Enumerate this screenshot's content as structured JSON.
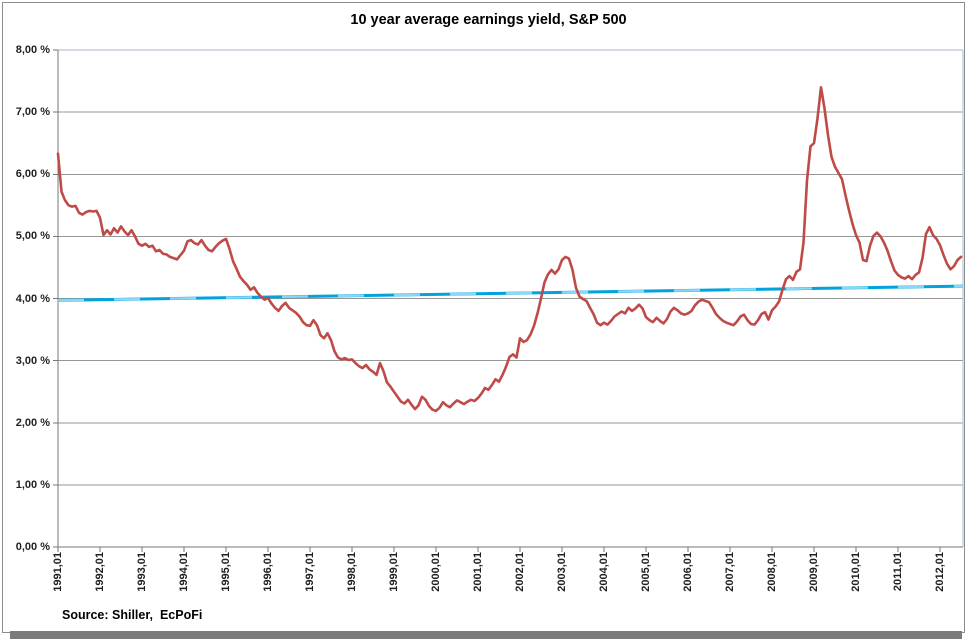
{
  "window": {
    "background": "#FFFFFF",
    "frame_border_color": "#8C8C8C",
    "shadow_color": "#7B7B7B"
  },
  "chart_data": {
    "type": "line",
    "title": "10 year average earnings yield, S&P 500",
    "source_note": "Source: Shiller,  EcPoFi",
    "grid": "horizontal",
    "legend": "none",
    "ylim": [
      0,
      8
    ],
    "colors": {
      "gridline": "#979797",
      "axis": "#777777",
      "plot_top_border": "#aab4c8",
      "plot_right_border": "#a5bedb",
      "series_main": "#BE4B48",
      "series_trend": "#00A3DC",
      "series_trend_dash": "#8BD7F6"
    },
    "y_axis": {
      "ticks": [
        {
          "label": "8,00 %",
          "value": 8
        },
        {
          "label": "7,00 %",
          "value": 7
        },
        {
          "label": "6,00 %",
          "value": 6
        },
        {
          "label": "5,00 %",
          "value": 5
        },
        {
          "label": "4,00 %",
          "value": 4
        },
        {
          "label": "3,00 %",
          "value": 3
        },
        {
          "label": "2,00 %",
          "value": 2
        },
        {
          "label": "1,00 %",
          "value": 1
        },
        {
          "label": "0,00 %",
          "value": 0
        }
      ]
    },
    "x_axis": {
      "start_year": 1991,
      "tick_labels": [
        "1991,01",
        "1992,01",
        "1993,01",
        "1994,01",
        "1995,01",
        "1996,01",
        "1997,01",
        "1998,01",
        "1999,01",
        "2000,01",
        "2001,01",
        "2002,01",
        "2003,01",
        "2004,01",
        "2005,01",
        "2006,01",
        "2007,01",
        "2008,01",
        "2009,01",
        "2010,01",
        "2011,01",
        "2012,01"
      ]
    },
    "series": [
      {
        "name": "10-year-average-earnings-yield",
        "render": "monthly",
        "color": "#BE4B48",
        "stroke_width": 2.6,
        "start_year": 1991,
        "values_percent": [
          6.33,
          5.72,
          5.58,
          5.5,
          5.48,
          5.49,
          5.38,
          5.35,
          5.39,
          5.41,
          5.4,
          5.41,
          5.3,
          5.02,
          5.1,
          5.03,
          5.13,
          5.06,
          5.16,
          5.08,
          5.02,
          5.1,
          5.0,
          4.88,
          4.85,
          4.88,
          4.83,
          4.85,
          4.76,
          4.78,
          4.72,
          4.71,
          4.67,
          4.65,
          4.63,
          4.7,
          4.77,
          4.92,
          4.94,
          4.89,
          4.87,
          4.94,
          4.85,
          4.78,
          4.76,
          4.83,
          4.89,
          4.93,
          4.96,
          4.8,
          4.6,
          4.48,
          4.35,
          4.28,
          4.22,
          4.14,
          4.18,
          4.09,
          4.03,
          3.98,
          4.01,
          3.92,
          3.85,
          3.8,
          3.88,
          3.93,
          3.85,
          3.81,
          3.77,
          3.71,
          3.62,
          3.57,
          3.56,
          3.65,
          3.57,
          3.41,
          3.36,
          3.44,
          3.33,
          3.15,
          3.05,
          3.02,
          3.04,
          3.01,
          3.02,
          2.96,
          2.91,
          2.88,
          2.93,
          2.86,
          2.82,
          2.77,
          2.96,
          2.83,
          2.65,
          2.58,
          2.5,
          2.42,
          2.34,
          2.31,
          2.37,
          2.29,
          2.22,
          2.28,
          2.42,
          2.37,
          2.27,
          2.21,
          2.19,
          2.24,
          2.33,
          2.28,
          2.25,
          2.31,
          2.36,
          2.33,
          2.3,
          2.34,
          2.37,
          2.35,
          2.4,
          2.47,
          2.56,
          2.53,
          2.61,
          2.7,
          2.66,
          2.77,
          2.9,
          3.06,
          3.1,
          3.05,
          3.36,
          3.3,
          3.33,
          3.42,
          3.56,
          3.76,
          4.0,
          4.26,
          4.39,
          4.46,
          4.4,
          4.47,
          4.62,
          4.67,
          4.64,
          4.46,
          4.17,
          4.03,
          3.99,
          3.96,
          3.85,
          3.75,
          3.61,
          3.57,
          3.61,
          3.58,
          3.64,
          3.71,
          3.75,
          3.79,
          3.76,
          3.85,
          3.8,
          3.84,
          3.9,
          3.84,
          3.7,
          3.65,
          3.62,
          3.69,
          3.64,
          3.6,
          3.67,
          3.79,
          3.85,
          3.81,
          3.76,
          3.74,
          3.76,
          3.8,
          3.89,
          3.95,
          3.98,
          3.96,
          3.94,
          3.85,
          3.75,
          3.69,
          3.64,
          3.61,
          3.59,
          3.57,
          3.63,
          3.71,
          3.74,
          3.65,
          3.59,
          3.58,
          3.65,
          3.75,
          3.78,
          3.66,
          3.81,
          3.87,
          3.95,
          4.14,
          4.31,
          4.36,
          4.3,
          4.43,
          4.47,
          4.9,
          5.9,
          6.45,
          6.5,
          6.9,
          7.4,
          7.06,
          6.63,
          6.28,
          6.12,
          6.02,
          5.92,
          5.66,
          5.42,
          5.2,
          5.02,
          4.9,
          4.62,
          4.6,
          4.85,
          5.01,
          5.06,
          5.0,
          4.9,
          4.77,
          4.6,
          4.45,
          4.38,
          4.34,
          4.32,
          4.36,
          4.31,
          4.38,
          4.42,
          4.65,
          5.04,
          5.15,
          5.02,
          4.96,
          4.86,
          4.7,
          4.56,
          4.47,
          4.52,
          4.62,
          4.67
        ]
      },
      {
        "name": "linear-trend",
        "render": "segment",
        "color": "#00A3DC",
        "dash_color": "#8BD7F6",
        "stroke_width": 3,
        "x_years": [
          1991.0,
          2012.55
        ],
        "y_percent": [
          3.97,
          4.2
        ]
      }
    ]
  }
}
